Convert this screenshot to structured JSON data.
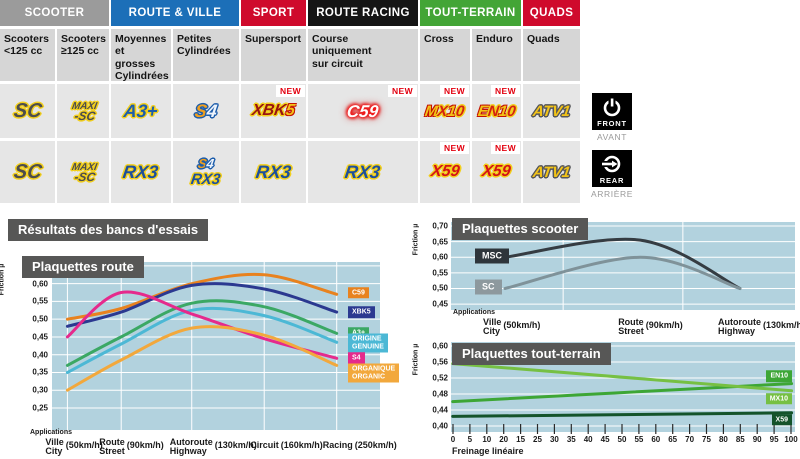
{
  "table": {
    "header_groups": [
      {
        "label": "SCOOTER",
        "color": "#9b9b9b",
        "cols": 2
      },
      {
        "label": "ROUTE & VILLE",
        "color": "#1c6fb8",
        "cols": 2
      },
      {
        "label": "SPORT",
        "color": "#cf0a2c",
        "cols": 1
      },
      {
        "label": "ROUTE RACING",
        "color": "#151515",
        "cols": 1
      },
      {
        "label": "TOUT-TERRAIN",
        "color": "#43a536",
        "cols": 2
      },
      {
        "label": "QUADS",
        "color": "#cf0a2c",
        "cols": 1
      }
    ],
    "sub_columns": [
      "Scooters\n<125 cc",
      "Scooters\n≥125 cc",
      "Moyennes\net grosses\nCylindrées",
      "Petites\nCylindrées",
      "Supersport",
      "Course\nuniquement\nsur circuit",
      "Cross",
      "Enduro",
      "Quads"
    ],
    "new_badge": "NEW",
    "front": {
      "label": "FRONT",
      "caption": "AVANT",
      "cells": [
        {
          "logos": [
            "SC"
          ],
          "new": false
        },
        {
          "logos": [
            "MAXI-SC"
          ],
          "new": false
        },
        {
          "logos": [
            "A3+"
          ],
          "new": false
        },
        {
          "logos": [
            "S4"
          ],
          "new": false
        },
        {
          "logos": [
            "XBK5"
          ],
          "new": true
        },
        {
          "logos": [
            "C59"
          ],
          "new": true
        },
        {
          "logos": [
            "MX10"
          ],
          "new": true
        },
        {
          "logos": [
            "EN10"
          ],
          "new": true
        },
        {
          "logos": [
            "ATV1"
          ],
          "new": false
        }
      ]
    },
    "rear": {
      "label": "REAR",
      "caption": "ARRIÈRE",
      "cells": [
        {
          "logos": [
            "SC"
          ],
          "new": false
        },
        {
          "logos": [
            "MAXI-SC"
          ],
          "new": false
        },
        {
          "logos": [
            "RX3"
          ],
          "new": false
        },
        {
          "logos": [
            "S4",
            "RX3"
          ],
          "new": false
        },
        {
          "logos": [
            "RX3"
          ],
          "new": false
        },
        {
          "logos": [
            "RX3"
          ],
          "new": false
        },
        {
          "logos": [
            "X59"
          ],
          "new": true
        },
        {
          "logos": [
            "X59"
          ],
          "new": true
        },
        {
          "logos": [
            "ATV1"
          ],
          "new": false
        }
      ]
    }
  },
  "results_title": "Résultats des bancs d'essais",
  "chart_data": [
    {
      "type": "line",
      "title": "Plaquettes route",
      "ylabel": "Friction µ",
      "xlabel": "Applications",
      "ylim": [
        0.25,
        0.65
      ],
      "yticks": [
        0.65,
        0.6,
        0.55,
        0.5,
        0.45,
        0.4,
        0.35,
        0.3,
        0.25
      ],
      "x_apps": [
        {
          "name": "Ville",
          "alt": "City",
          "speed": "(50km/h)"
        },
        {
          "name": "Route",
          "alt": "Street",
          "speed": "(90km/h)"
        },
        {
          "name": "Autoroute",
          "alt": "Highway",
          "speed": "(130km/h)"
        },
        {
          "name": "Circuit",
          "speed": "(160km/h)"
        },
        {
          "name": "Racing",
          "speed": "(250km/h)"
        }
      ],
      "grid": true,
      "legend_position": "right-inside",
      "series": [
        {
          "name": "C59",
          "color": "#e8821e",
          "values": [
            0.5,
            0.53,
            0.6,
            0.625,
            0.57
          ],
          "label_lines": [
            "C59"
          ],
          "label_value": 0.575
        },
        {
          "name": "XBK5",
          "color": "#2b3990",
          "values": [
            0.48,
            0.52,
            0.595,
            0.585,
            0.52
          ],
          "label_lines": [
            "XBK5"
          ],
          "label_value": 0.52
        },
        {
          "name": "A3+",
          "color": "#3ba864",
          "values": [
            0.37,
            0.45,
            0.545,
            0.535,
            0.46
          ],
          "label_lines": [
            "A3+"
          ],
          "label_value": 0.462
        },
        {
          "name": "ORIGINE GENUINE",
          "color": "#4cb8d5",
          "values": [
            0.35,
            0.43,
            0.525,
            0.51,
            0.435
          ],
          "label_lines": [
            "ORIGINE",
            "GENUINE"
          ],
          "label_value": 0.432
        },
        {
          "name": "S4",
          "color": "#e52a8c",
          "values": [
            0.45,
            0.575,
            0.515,
            0.445,
            0.39
          ],
          "label_lines": [
            "S4"
          ],
          "label_value": 0.39
        },
        {
          "name": "ORGANIQUE ORGANIC",
          "color": "#f2a83c",
          "values": [
            0.3,
            0.385,
            0.475,
            0.455,
            0.37
          ],
          "label_lines": [
            "ORGANIQUE",
            "ORGANIC"
          ],
          "label_value": 0.348
        }
      ]
    },
    {
      "type": "line",
      "title": "Plaquettes scooter",
      "ylabel": "Friction µ",
      "xlabel": "Applications",
      "ylim": [
        0.45,
        0.7
      ],
      "yticks": [
        0.7,
        0.65,
        0.6,
        0.55,
        0.5,
        0.45
      ],
      "x_apps": [
        {
          "name": "Ville",
          "alt": "City",
          "speed": "(50km/h)"
        },
        {
          "name": "Route",
          "alt": "Street",
          "speed": "(90km/h)"
        },
        {
          "name": "Autoroute",
          "alt": "Highway",
          "speed": "(130km/h)"
        }
      ],
      "grid": true,
      "series": [
        {
          "name": "MSC",
          "color": "#353c42",
          "values": [
            0.6,
            0.655,
            0.5
          ],
          "label_lines": [
            "MSC"
          ],
          "label_box": "#2e353b",
          "label_value": 0.605
        },
        {
          "name": "SC",
          "color": "#7f9299",
          "values": [
            0.5,
            0.6,
            0.5
          ],
          "label_lines": [
            "SC"
          ],
          "label_box": "#8d999e",
          "label_value": 0.505
        }
      ]
    },
    {
      "type": "line",
      "title": "Plaquettes tout-terrain",
      "ylabel": "Friction µ",
      "xlabel": "Freinage linéaire",
      "ylim": [
        0.4,
        0.6
      ],
      "yticks": [
        0.6,
        0.56,
        0.52,
        0.48,
        0.44,
        0.4
      ],
      "xticks": [
        "0",
        "5",
        "10",
        "20",
        "15",
        "25",
        "30",
        "35",
        "40",
        "45",
        "50",
        "55",
        "60",
        "65",
        "70",
        "75",
        "80",
        "85",
        "90",
        "95",
        "100"
      ],
      "grid": true,
      "series": [
        {
          "name": "EN10",
          "color": "#3da635",
          "values": [
            0.461,
            0.506
          ],
          "label_lines": [
            "EN10"
          ],
          "label_value": 0.525
        },
        {
          "name": "MX10",
          "color": "#76c043",
          "values": [
            0.556,
            0.488
          ],
          "label_lines": [
            "MX10"
          ],
          "label_value": 0.468
        },
        {
          "name": "X59",
          "color": "#14532a",
          "values": [
            0.424,
            0.433
          ],
          "label_lines": [
            "X59"
          ],
          "label_value": 0.416
        }
      ]
    }
  ]
}
